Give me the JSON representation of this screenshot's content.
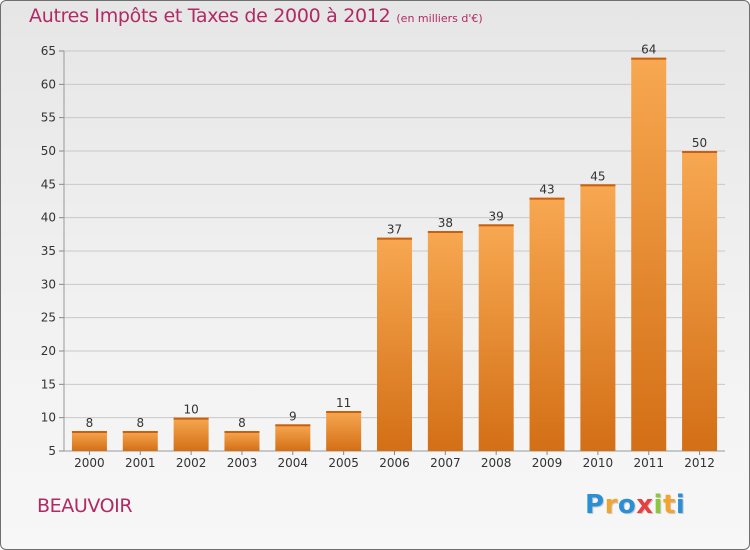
{
  "title": "Autres Impôts et Taxes de 2000 à 2012",
  "subtitle": "(en milliers d'€)",
  "commune": "BEAUVOIR",
  "logo": {
    "text": "Proxiti",
    "letters": [
      {
        "ch": "P",
        "color": "#2b8fd6"
      },
      {
        "ch": "r",
        "color": "#f0a531"
      },
      {
        "ch": "o",
        "color": "#2b8fd6"
      },
      {
        "ch": "x",
        "color": "#e63f3f"
      },
      {
        "ch": "i",
        "color": "#8cc63f"
      },
      {
        "ch": "t",
        "color": "#f0a531"
      },
      {
        "ch": "i",
        "color": "#2b8fd6"
      }
    ]
  },
  "colors": {
    "title": "#b02a64",
    "bar_top": "#f7a851",
    "bar_bottom": "#d36f16",
    "grid": "#c8c8c8",
    "axis_text": "#333333"
  },
  "chart_data": {
    "type": "bar",
    "categories": [
      "2000",
      "2001",
      "2002",
      "2003",
      "2004",
      "2005",
      "2006",
      "2007",
      "2008",
      "2009",
      "2010",
      "2011",
      "2012"
    ],
    "values": [
      8,
      8,
      10,
      8,
      9,
      11,
      37,
      38,
      39,
      43,
      45,
      64,
      50
    ],
    "data_labels": [
      "8",
      "8",
      "10",
      "8",
      "9",
      "11",
      "37",
      "38",
      "39",
      "43",
      "45",
      "64",
      "50"
    ],
    "yticks": [
      5,
      10,
      15,
      20,
      25,
      30,
      35,
      40,
      45,
      50,
      55,
      60,
      65
    ],
    "ylim": [
      5,
      65
    ],
    "grid": true,
    "xlabel": "",
    "ylabel": ""
  }
}
